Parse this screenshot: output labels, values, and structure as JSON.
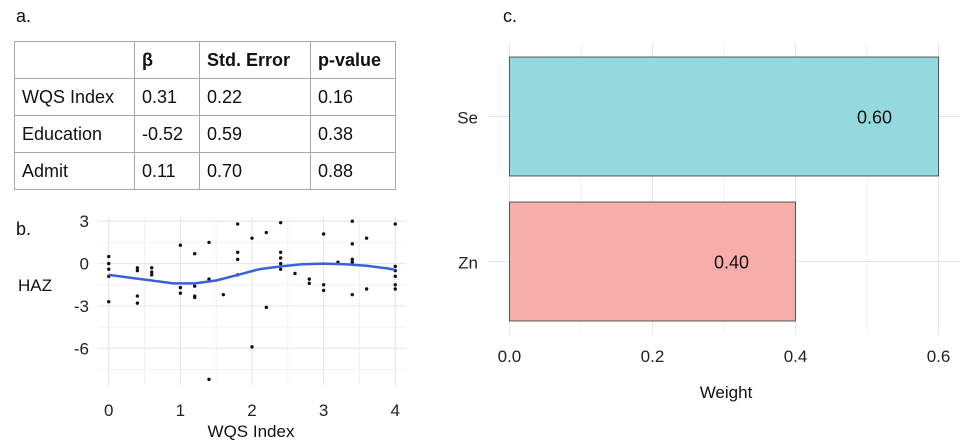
{
  "panels": {
    "a": "a.",
    "b": "b.",
    "c": "c."
  },
  "table": {
    "headers": [
      "",
      "β",
      "Std. Error",
      "p-value"
    ],
    "rows": [
      [
        "WQS Index",
        "0.31",
        "0.22",
        "0.16"
      ],
      [
        "Education",
        "-0.52",
        "0.59",
        "0.38"
      ],
      [
        "Admit",
        "0.11",
        "0.70",
        "0.88"
      ]
    ]
  },
  "chart_data": [
    {
      "type": "scatter",
      "xlabel": "WQS Index",
      "ylabel": "HAZ",
      "xlim": [
        -0.15,
        4.15
      ],
      "ylim": [
        -8.6,
        3.3
      ],
      "xticks": [
        "0",
        "1",
        "2",
        "3",
        "4"
      ],
      "yticks": [
        "3",
        "0",
        "-3",
        "-6"
      ],
      "grid": true,
      "points": [
        [
          0,
          0.5
        ],
        [
          0,
          0
        ],
        [
          0,
          -0.4
        ],
        [
          0,
          -0.9
        ],
        [
          0,
          -2.7
        ],
        [
          0.4,
          -0.3
        ],
        [
          0.4,
          -0.5
        ],
        [
          0.4,
          -2.3
        ],
        [
          0.4,
          -2.8
        ],
        [
          0.6,
          -0.3
        ],
        [
          0.6,
          -0.6
        ],
        [
          0.6,
          -0.8
        ],
        [
          1.0,
          1.3
        ],
        [
          1.0,
          -1.7
        ],
        [
          1.0,
          -2.1
        ],
        [
          1.2,
          0.7
        ],
        [
          1.2,
          -1.6
        ],
        [
          1.2,
          -2.3
        ],
        [
          1.2,
          -2.4
        ],
        [
          1.4,
          1.5
        ],
        [
          1.4,
          -1.1
        ],
        [
          1.4,
          -8.2
        ],
        [
          1.6,
          -2.2
        ],
        [
          1.8,
          2.8
        ],
        [
          1.8,
          0.8
        ],
        [
          1.8,
          0.3
        ],
        [
          1.8,
          -0.8
        ],
        [
          2.0,
          1.8
        ],
        [
          2.0,
          -5.9
        ],
        [
          2.2,
          2.2
        ],
        [
          2.2,
          -3.1
        ],
        [
          2.4,
          2.9
        ],
        [
          2.4,
          0.8
        ],
        [
          2.4,
          0.4
        ],
        [
          2.4,
          0
        ],
        [
          2.4,
          -0.4
        ],
        [
          2.6,
          -0.7
        ],
        [
          2.8,
          -1.1
        ],
        [
          2.8,
          -1.4
        ],
        [
          3.0,
          2.1
        ],
        [
          3.0,
          -1.5
        ],
        [
          3.0,
          -1.9
        ],
        [
          3.2,
          0.1
        ],
        [
          3.4,
          3.0
        ],
        [
          3.4,
          1.4
        ],
        [
          3.4,
          0.3
        ],
        [
          3.4,
          0.1
        ],
        [
          3.4,
          -2.2
        ],
        [
          3.6,
          1.8
        ],
        [
          3.6,
          -1.8
        ],
        [
          4.0,
          2.8
        ],
        [
          4.0,
          -0.2
        ],
        [
          4.0,
          -0.5
        ],
        [
          4.0,
          -0.9
        ],
        [
          4.0,
          -1.5
        ],
        [
          4.0,
          -1.8
        ]
      ],
      "smooth": {
        "color": "#3a62d8",
        "x": [
          0,
          0.3,
          0.6,
          0.9,
          1.2,
          1.5,
          1.8,
          2.1,
          2.4,
          2.7,
          3.0,
          3.3,
          3.6,
          3.9,
          4.0
        ],
        "y": [
          -0.8,
          -1.0,
          -1.2,
          -1.4,
          -1.4,
          -1.2,
          -0.8,
          -0.4,
          -0.2,
          -0.05,
          0,
          -0.05,
          -0.15,
          -0.35,
          -0.45
        ]
      }
    },
    {
      "type": "bar",
      "orientation": "horizontal",
      "categories": [
        "Se",
        "Zn"
      ],
      "values": [
        0.6,
        0.4
      ],
      "value_labels": [
        "0.60",
        "0.40"
      ],
      "colors": [
        "#93d9de",
        "#f7aeab"
      ],
      "xlabel": "Weight",
      "xlim": [
        -0.03,
        0.63
      ],
      "xticks": [
        "0.0",
        "0.2",
        "0.4",
        "0.6"
      ],
      "grid": true
    }
  ]
}
